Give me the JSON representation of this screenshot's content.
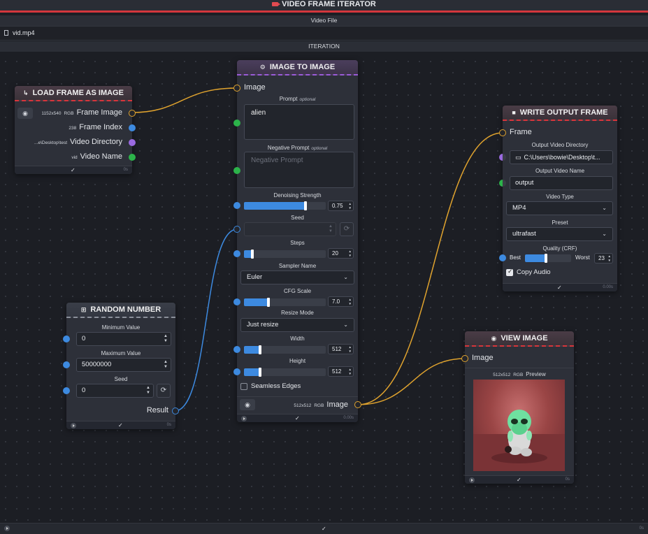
{
  "iterator": {
    "title": "VIDEO FRAME ITERATOR",
    "video_file_label": "Video File",
    "video_file_value": "vid.mp4",
    "iteration_label": "ITERATION"
  },
  "load_frame": {
    "title": "LOAD FRAME AS IMAGE",
    "outputs": [
      {
        "label": "Frame Image",
        "info": "1152x540",
        "info2": "RGB"
      },
      {
        "label": "Frame Index",
        "info": "238"
      },
      {
        "label": "Video Directory",
        "info": "...e\\Desktop\\test"
      },
      {
        "label": "Video Name",
        "info": "vid"
      }
    ],
    "timer": "0s"
  },
  "random_number": {
    "title": "RANDOM NUMBER",
    "min_label": "Minimum Value",
    "min_value": "0",
    "max_label": "Maximum Value",
    "max_value": "50000000",
    "seed_label": "Seed",
    "seed_value": "0",
    "result_label": "Result",
    "timer": "0s"
  },
  "img2img": {
    "title": "IMAGE TO IMAGE",
    "image_input_label": "Image",
    "prompt_label": "Prompt",
    "prompt_optional": "optional",
    "prompt_value": "alien",
    "neg_label": "Negative Prompt",
    "neg_optional": "optional",
    "neg_placeholder": "Negative Prompt",
    "denoise_label": "Denoising Strength",
    "denoise_value": "0.75",
    "denoise_fraction": 0.75,
    "seed_label": "Seed",
    "steps_label": "Steps",
    "steps_value": "20",
    "steps_fraction": 0.1,
    "sampler_label": "Sampler Name",
    "sampler_value": "Euler",
    "cfg_label": "CFG Scale",
    "cfg_value": "7.0",
    "cfg_fraction": 0.3,
    "resize_label": "Resize Mode",
    "resize_value": "Just resize",
    "width_label": "Width",
    "width_value": "512",
    "width_fraction": 0.2,
    "height_label": "Height",
    "height_value": "512",
    "height_fraction": 0.2,
    "seamless_label": "Seamless Edges",
    "out_info": "512x512",
    "out_info2": "RGB",
    "out_label": "Image",
    "timer": "0.00s"
  },
  "write_output": {
    "title": "WRITE OUTPUT FRAME",
    "frame_label": "Frame",
    "dir_label": "Output Video Directory",
    "dir_value": "C:\\Users\\bowie\\Desktop\\t...",
    "name_label": "Output Video Name",
    "name_value": "output",
    "type_label": "Video Type",
    "type_value": "MP4",
    "preset_label": "Preset",
    "preset_value": "ultrafast",
    "quality_label": "Quality (CRF)",
    "quality_best": "Best",
    "quality_worst": "Worst",
    "quality_value": "23",
    "quality_fraction": 0.45,
    "copy_audio_label": "Copy Audio",
    "timer": "0.00s"
  },
  "view_image": {
    "title": "VIEW IMAGE",
    "input_label": "Image",
    "info": "512x512",
    "info2": "RGB",
    "preview_label": "Preview",
    "timer": "0s"
  },
  "footer": {
    "timer": "0s"
  },
  "colors": {
    "accent_red": "#d3363c",
    "image_wire": "#e0a32e",
    "number_wire": "#3d8ae0",
    "text_port": "#2cb34a",
    "directory_port": "#9a6ae0"
  }
}
